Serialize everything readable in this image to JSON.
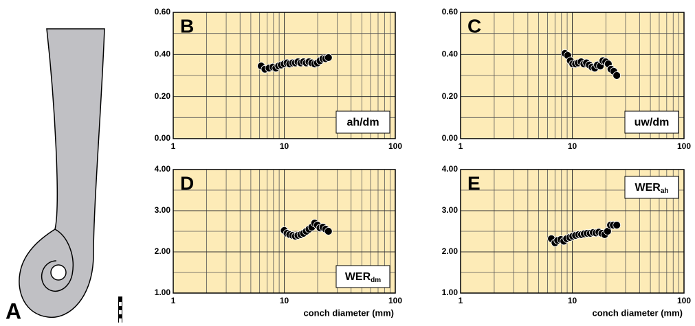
{
  "panel_a": {
    "label": "A"
  },
  "chart_data": [
    {
      "type": "scatter",
      "panel": "B",
      "label": "ah/dm",
      "label_corner": "bottom-right",
      "color": "#000000",
      "background": "#fdebb7",
      "grid": true,
      "xscale": "log",
      "xlim": [
        1,
        100
      ],
      "xticks": [
        1,
        10,
        100
      ],
      "xminor": [
        2,
        3,
        4,
        5,
        6,
        7,
        8,
        9,
        20,
        30,
        40,
        50,
        60,
        70,
        80,
        90
      ],
      "ylim": [
        0,
        0.6
      ],
      "yticks": [
        {
          "value": 0,
          "label": "0.00"
        },
        {
          "value": 0.2,
          "label": "0.20"
        },
        {
          "value": 0.4,
          "label": "0.40"
        },
        {
          "value": 0.6,
          "label": "0.60"
        }
      ],
      "yminor": [
        0.1,
        0.3,
        0.5
      ],
      "x": [
        6.2,
        6.7,
        7.3,
        7.9,
        8.4,
        8.9,
        9.4,
        10,
        10.6,
        11.2,
        11.9,
        12.6,
        13.3,
        14.1,
        14.9,
        15.8,
        16.7,
        17.7,
        18.8,
        19.9,
        21,
        22.3,
        23.6,
        25
      ],
      "values": [
        0.345,
        0.33,
        0.335,
        0.34,
        0.335,
        0.345,
        0.35,
        0.355,
        0.36,
        0.355,
        0.36,
        0.36,
        0.365,
        0.36,
        0.365,
        0.36,
        0.365,
        0.36,
        0.355,
        0.36,
        0.37,
        0.38,
        0.38,
        0.385
      ]
    },
    {
      "type": "scatter",
      "panel": "C",
      "label": "uw/dm",
      "label_corner": "bottom-right",
      "color": "#000000",
      "background": "#fdebb7",
      "grid": true,
      "xscale": "log",
      "xlim": [
        1,
        100
      ],
      "xticks": [
        1,
        10,
        100
      ],
      "xminor": [
        2,
        3,
        4,
        5,
        6,
        7,
        8,
        9,
        20,
        30,
        40,
        50,
        60,
        70,
        80,
        90
      ],
      "ylim": [
        0,
        0.6
      ],
      "yticks": [
        {
          "value": 0,
          "label": "0.00"
        },
        {
          "value": 0.2,
          "label": "0.20"
        },
        {
          "value": 0.4,
          "label": "0.40"
        },
        {
          "value": 0.6,
          "label": "0.60"
        }
      ],
      "yminor": [
        0.1,
        0.3,
        0.5
      ],
      "x": [
        8.6,
        9.1,
        9.6,
        10.1,
        10.7,
        11.3,
        12,
        12.7,
        13.4,
        14.2,
        15,
        15.9,
        16.8,
        17.8,
        18.8,
        19.9,
        21,
        22.2,
        23.5,
        25
      ],
      "values": [
        0.405,
        0.395,
        0.37,
        0.355,
        0.355,
        0.36,
        0.365,
        0.355,
        0.36,
        0.35,
        0.34,
        0.335,
        0.35,
        0.345,
        0.37,
        0.365,
        0.355,
        0.33,
        0.32,
        0.3
      ]
    },
    {
      "type": "scatter",
      "panel": "D",
      "label": "WER",
      "label_sub": "dm",
      "label_corner": "bottom-right",
      "color": "#000000",
      "background": "#fdebb7",
      "grid": true,
      "xscale": "log",
      "xlabel": "conch diameter (mm)",
      "xlim": [
        1,
        100
      ],
      "xticks": [
        1,
        10,
        100
      ],
      "xminor": [
        2,
        3,
        4,
        5,
        6,
        7,
        8,
        9,
        20,
        30,
        40,
        50,
        60,
        70,
        80,
        90
      ],
      "ylim": [
        1,
        4
      ],
      "yticks": [
        {
          "value": 1,
          "label": "1.00"
        },
        {
          "value": 2,
          "label": "2.00"
        },
        {
          "value": 3,
          "label": "3.00"
        },
        {
          "value": 4,
          "label": "4.00"
        }
      ],
      "yminor": [
        1.5,
        2.5,
        3.5
      ],
      "x": [
        10,
        10.6,
        11.2,
        11.9,
        12.6,
        13.3,
        14.1,
        14.9,
        15.8,
        16.7,
        17.7,
        18.8,
        19.9,
        21,
        22.3,
        23.6,
        25
      ],
      "values": [
        2.52,
        2.45,
        2.42,
        2.4,
        2.38,
        2.4,
        2.42,
        2.45,
        2.5,
        2.55,
        2.6,
        2.7,
        2.65,
        2.58,
        2.6,
        2.55,
        2.5
      ]
    },
    {
      "type": "scatter",
      "panel": "E",
      "label": "WER",
      "label_sub": "ah",
      "label_corner": "top-right",
      "color": "#000000",
      "background": "#fdebb7",
      "grid": true,
      "xscale": "log",
      "xlabel": "conch diameter (mm)",
      "xlim": [
        1,
        100
      ],
      "xticks": [
        1,
        10,
        100
      ],
      "xminor": [
        2,
        3,
        4,
        5,
        6,
        7,
        8,
        9,
        20,
        30,
        40,
        50,
        60,
        70,
        80,
        90
      ],
      "ylim": [
        1,
        4
      ],
      "yticks": [
        {
          "value": 1,
          "label": "1.00"
        },
        {
          "value": 2,
          "label": "2.00"
        },
        {
          "value": 3,
          "label": "3.00"
        },
        {
          "value": 4,
          "label": "4.00"
        }
      ],
      "yminor": [
        1.5,
        2.5,
        3.5
      ],
      "x": [
        6.5,
        7,
        7.4,
        7.9,
        8.4,
        8.9,
        9.5,
        10.1,
        10.7,
        11.4,
        12.1,
        12.8,
        13.6,
        14.5,
        15.4,
        16.3,
        17.3,
        18.4,
        19.5,
        20.7,
        22,
        23.3,
        25
      ],
      "values": [
        2.32,
        2.22,
        2.28,
        2.3,
        2.26,
        2.32,
        2.35,
        2.38,
        2.4,
        2.42,
        2.42,
        2.44,
        2.45,
        2.45,
        2.47,
        2.46,
        2.48,
        2.45,
        2.42,
        2.5,
        2.65,
        2.65,
        2.65
      ]
    }
  ]
}
